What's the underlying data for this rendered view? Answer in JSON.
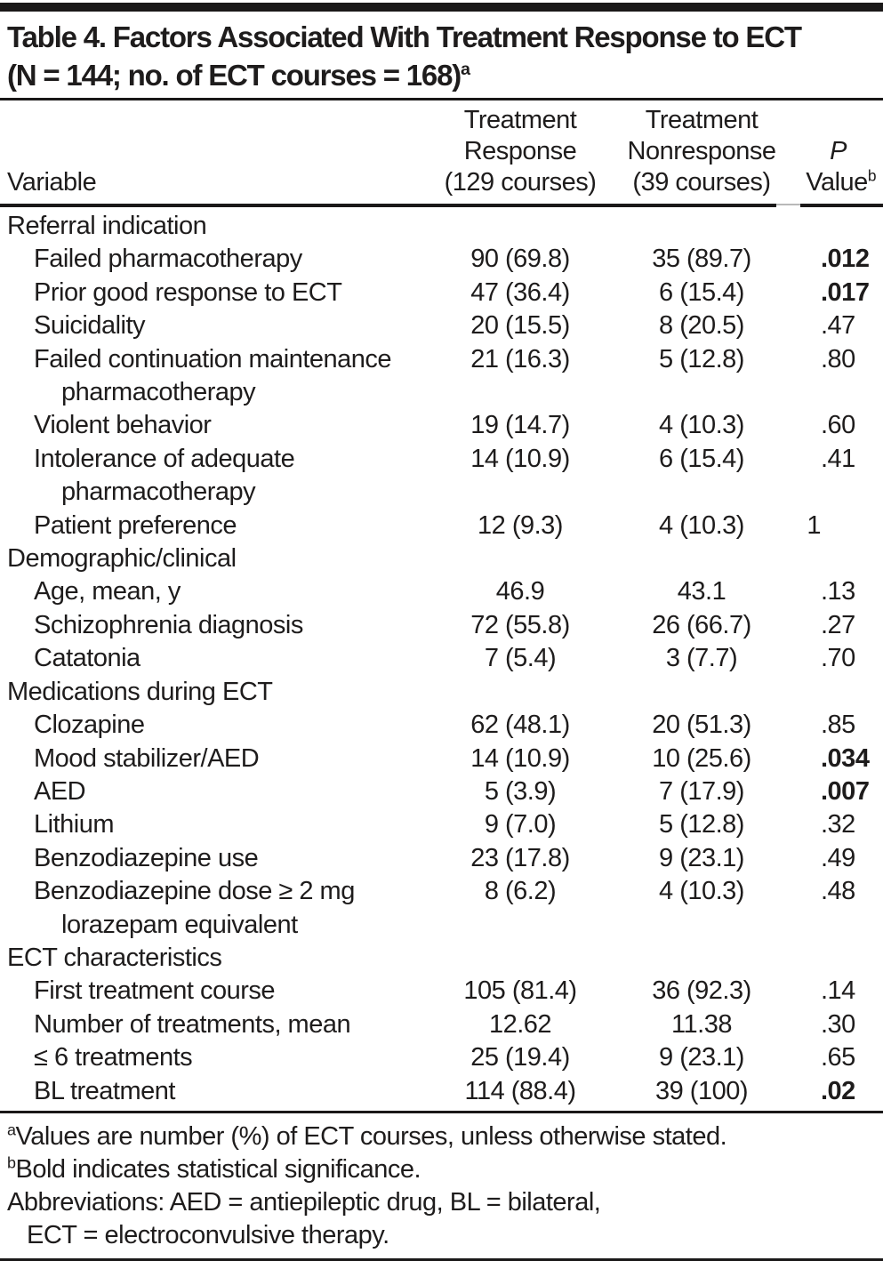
{
  "title": {
    "line1": "Table 4. Factors Associated With Treatment Response to ECT",
    "line2": "(N = 144; no. of ECT courses = 168)",
    "line2_sup": "a"
  },
  "header": {
    "variable": "Variable",
    "response": [
      "Treatment",
      "Response",
      "(129 courses)"
    ],
    "nonresponse": [
      "Treatment",
      "Nonresponse",
      "(39 courses)"
    ],
    "p": {
      "line1": "P",
      "line2": "Value",
      "sup": "b"
    }
  },
  "rows": [
    {
      "type": "section",
      "label": "Referral indication"
    },
    {
      "type": "item",
      "label": "Failed pharmacotherapy",
      "response": "90 (69.8)",
      "nonresponse": "35 (89.7)",
      "p": ".012",
      "p_bold": true
    },
    {
      "type": "item",
      "label": "Prior good response to ECT",
      "response": "47 (36.4)",
      "nonresponse": "6 (15.4)",
      "p": ".017",
      "p_bold": true
    },
    {
      "type": "item",
      "label": "Suicidality",
      "response": "20 (15.5)",
      "nonresponse": "8 (20.5)",
      "p": ".47",
      "p_bold": false
    },
    {
      "type": "item",
      "label": "Failed continuation maintenance",
      "label2": "pharmacotherapy",
      "response": "21 (16.3)",
      "nonresponse": "5 (12.8)",
      "p": ".80",
      "p_bold": false
    },
    {
      "type": "item",
      "label": "Violent behavior",
      "response": "19 (14.7)",
      "nonresponse": "4 (10.3)",
      "p": ".60",
      "p_bold": false
    },
    {
      "type": "item",
      "label": "Intolerance of adequate",
      "label2": "pharmacotherapy",
      "response": "14 (10.9)",
      "nonresponse": "6 (15.4)",
      "p": ".41",
      "p_bold": false
    },
    {
      "type": "item",
      "label": "Patient preference",
      "response": "12 (9.3)",
      "nonresponse": "4 (10.3)",
      "p": "1",
      "p_bold": false
    },
    {
      "type": "section",
      "label": "Demographic/clinical"
    },
    {
      "type": "item",
      "label": "Age, mean, y",
      "response": "46.9",
      "nonresponse": "43.1",
      "p": ".13",
      "p_bold": false
    },
    {
      "type": "item",
      "label": "Schizophrenia diagnosis",
      "response": "72 (55.8)",
      "nonresponse": "26 (66.7)",
      "p": ".27",
      "p_bold": false
    },
    {
      "type": "item",
      "label": "Catatonia",
      "response": "7 (5.4)",
      "nonresponse": "3 (7.7)",
      "p": ".70",
      "p_bold": false
    },
    {
      "type": "section",
      "label": "Medications during ECT"
    },
    {
      "type": "item",
      "label": "Clozapine",
      "response": "62 (48.1)",
      "nonresponse": "20 (51.3)",
      "p": ".85",
      "p_bold": false
    },
    {
      "type": "item",
      "label": "Mood stabilizer/AED",
      "response": "14 (10.9)",
      "nonresponse": "10 (25.6)",
      "p": ".034",
      "p_bold": true
    },
    {
      "type": "item",
      "label": "AED",
      "response": "5 (3.9)",
      "nonresponse": "7 (17.9)",
      "p": ".007",
      "p_bold": true
    },
    {
      "type": "item",
      "label": "Lithium",
      "response": "9 (7.0)",
      "nonresponse": "5 (12.8)",
      "p": ".32",
      "p_bold": false
    },
    {
      "type": "item",
      "label": "Benzodiazepine use",
      "response": "23 (17.8)",
      "nonresponse": "9 (23.1)",
      "p": ".49",
      "p_bold": false
    },
    {
      "type": "item",
      "label": "Benzodiazepine dose ≥ 2 mg",
      "label2": "lorazepam equivalent",
      "response": "8 (6.2)",
      "nonresponse": "4 (10.3)",
      "p": ".48",
      "p_bold": false
    },
    {
      "type": "section",
      "label": "ECT characteristics"
    },
    {
      "type": "item",
      "label": "First treatment course",
      "response": "105 (81.4)",
      "nonresponse": "36 (92.3)",
      "p": ".14",
      "p_bold": false
    },
    {
      "type": "item",
      "label": "Number of treatments, mean",
      "response": "12.62",
      "nonresponse": "11.38",
      "p": ".30",
      "p_bold": false
    },
    {
      "type": "item",
      "label": "≤ 6 treatments",
      "response": "25 (19.4)",
      "nonresponse": "9 (23.1)",
      "p": ".65",
      "p_bold": false
    },
    {
      "type": "item",
      "label": "BL treatment",
      "response": "114 (88.4)",
      "nonresponse": "39 (100)",
      "p": ".02",
      "p_bold": true
    }
  ],
  "footnotes": {
    "a": {
      "sup": "a",
      "text": "Values are number (%) of ECT courses, unless otherwise stated."
    },
    "b": {
      "sup": "b",
      "text": "Bold indicates statistical significance."
    },
    "abbr_line1": "Abbreviations: AED = antiepileptic drug, BL = bilateral,",
    "abbr_line2": "ECT = electroconvulsive therapy."
  },
  "colors": {
    "text": "#1e1c1c",
    "rule": "#1a1818",
    "background": "#ffffff"
  }
}
